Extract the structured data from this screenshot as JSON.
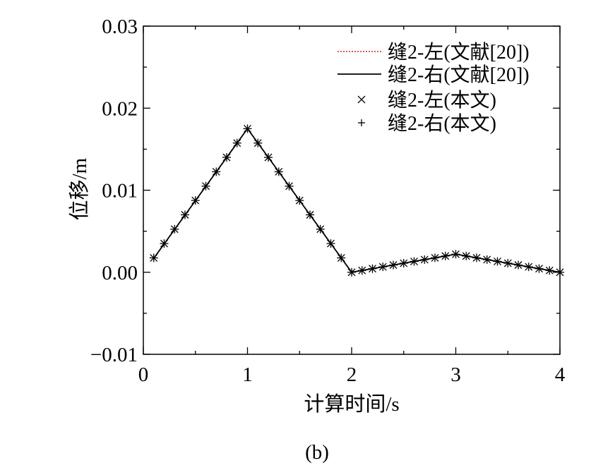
{
  "figure_label": "(b)",
  "chart_data": {
    "type": "line",
    "title": "",
    "xlabel": "计算时间/s",
    "ylabel": "位移/m",
    "xlim": [
      0,
      4
    ],
    "ylim": [
      -0.01,
      0.03
    ],
    "x_ticks": [
      0,
      1,
      2,
      3,
      4
    ],
    "x_tick_labels": [
      "0",
      "1",
      "2",
      "3",
      "4"
    ],
    "y_ticks": [
      -0.01,
      0.0,
      0.01,
      0.02,
      0.03
    ],
    "y_tick_labels": [
      "−0.01",
      "0.00",
      "0.01",
      "0.02",
      "0.03"
    ],
    "grid": false,
    "legend_position": "top-right",
    "series": [
      {
        "name": "缝2-左(文献[20])",
        "style": "dotted-line",
        "color": "#d62020",
        "x": [
          0.1,
          1.0,
          2.0,
          3.0,
          4.0
        ],
        "y": [
          0.0017,
          0.0175,
          0.0,
          0.0022,
          0.0
        ]
      },
      {
        "name": "缝2-右(文献[20])",
        "style": "solid-line",
        "color": "#000000",
        "x": [
          0.1,
          1.0,
          2.0,
          3.0,
          4.0
        ],
        "y": [
          0.0017,
          0.0175,
          0.0,
          0.0022,
          0.0
        ]
      },
      {
        "name": "缝2-左(本文)",
        "style": "x-marker",
        "color": "#000000",
        "x": [
          0.1,
          0.2,
          0.3,
          0.4,
          0.5,
          0.6,
          0.7,
          0.8,
          0.9,
          1.0,
          1.1,
          1.2,
          1.3,
          1.4,
          1.5,
          1.6,
          1.7,
          1.8,
          1.9,
          2.0,
          2.1,
          2.2,
          2.3,
          2.4,
          2.5,
          2.6,
          2.7,
          2.8,
          2.9,
          3.0,
          3.1,
          3.2,
          3.3,
          3.4,
          3.5,
          3.6,
          3.7,
          3.8,
          3.9,
          4.0
        ],
        "y": [
          0.00175,
          0.0035,
          0.00525,
          0.007,
          0.00875,
          0.0105,
          0.01225,
          0.014,
          0.01575,
          0.0175,
          0.01575,
          0.014,
          0.01225,
          0.0105,
          0.00875,
          0.007,
          0.00525,
          0.0035,
          0.00175,
          0.0,
          0.00022,
          0.00044,
          0.00066,
          0.00088,
          0.0011,
          0.00132,
          0.00154,
          0.00176,
          0.00198,
          0.0022,
          0.00198,
          0.00176,
          0.00154,
          0.00132,
          0.0011,
          0.00088,
          0.00066,
          0.00044,
          0.00022,
          0.0
        ]
      },
      {
        "name": "缝2-右(本文)",
        "style": "plus-marker",
        "color": "#000000",
        "x": [
          0.1,
          0.2,
          0.3,
          0.4,
          0.5,
          0.6,
          0.7,
          0.8,
          0.9,
          1.0,
          1.1,
          1.2,
          1.3,
          1.4,
          1.5,
          1.6,
          1.7,
          1.8,
          1.9,
          2.0,
          2.1,
          2.2,
          2.3,
          2.4,
          2.5,
          2.6,
          2.7,
          2.8,
          2.9,
          3.0,
          3.1,
          3.2,
          3.3,
          3.4,
          3.5,
          3.6,
          3.7,
          3.8,
          3.9,
          4.0
        ],
        "y": [
          0.00175,
          0.0035,
          0.00525,
          0.007,
          0.00875,
          0.0105,
          0.01225,
          0.014,
          0.01575,
          0.0175,
          0.01575,
          0.014,
          0.01225,
          0.0105,
          0.00875,
          0.007,
          0.00525,
          0.0035,
          0.00175,
          0.0,
          0.00022,
          0.00044,
          0.00066,
          0.00088,
          0.0011,
          0.00132,
          0.00154,
          0.00176,
          0.00198,
          0.0022,
          0.00198,
          0.00176,
          0.00154,
          0.00132,
          0.0011,
          0.00088,
          0.00066,
          0.00044,
          0.00022,
          0.0
        ]
      }
    ]
  }
}
